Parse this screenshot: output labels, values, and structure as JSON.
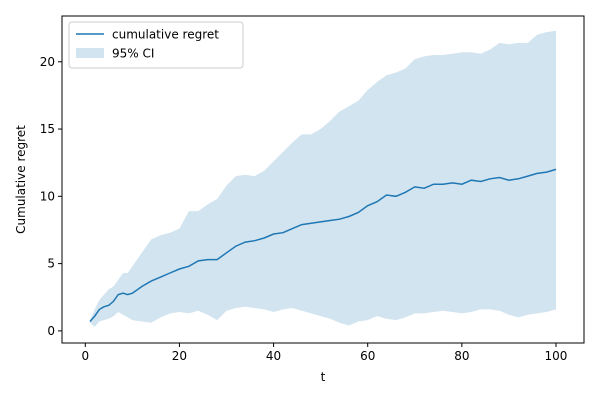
{
  "chart_data": {
    "type": "line",
    "title": "",
    "xlabel": "t",
    "ylabel": "Cumulative regret",
    "xlim": [
      -4.95,
      105.95
    ],
    "ylim": [
      -0.9,
      23.4
    ],
    "xticks": [
      0,
      20,
      40,
      60,
      80,
      100
    ],
    "yticks": [
      0,
      5,
      10,
      15,
      20
    ],
    "grid": false,
    "legend_position": "top-left",
    "series": [
      {
        "name": "cumulative regret",
        "color": "#1f77b4",
        "x": [
          1,
          2,
          3,
          4,
          5,
          6,
          7,
          8,
          9,
          10,
          12,
          14,
          16,
          18,
          20,
          22,
          24,
          26,
          28,
          30,
          32,
          34,
          36,
          38,
          40,
          42,
          44,
          46,
          48,
          50,
          52,
          54,
          56,
          58,
          60,
          62,
          64,
          66,
          68,
          70,
          72,
          74,
          76,
          78,
          80,
          82,
          84,
          86,
          88,
          90,
          92,
          94,
          96,
          98,
          100
        ],
        "y": [
          0.7,
          1.1,
          1.6,
          1.8,
          1.9,
          2.2,
          2.7,
          2.8,
          2.7,
          2.8,
          3.3,
          3.7,
          4.0,
          4.3,
          4.6,
          4.8,
          5.2,
          5.3,
          5.3,
          5.8,
          6.3,
          6.6,
          6.7,
          6.9,
          7.2,
          7.3,
          7.6,
          7.9,
          8.0,
          8.1,
          8.2,
          8.3,
          8.5,
          8.8,
          9.3,
          9.6,
          10.1,
          10.0,
          10.3,
          10.7,
          10.6,
          10.9,
          10.9,
          11.0,
          10.9,
          11.2,
          11.1,
          11.3,
          11.4,
          11.2,
          11.3,
          11.5,
          11.7,
          11.8,
          12.0
        ]
      },
      {
        "name": "95% CI",
        "type": "band",
        "color": "#1f77b4",
        "opacity": 0.2,
        "x": [
          1,
          2,
          3,
          4,
          5,
          6,
          7,
          8,
          9,
          10,
          12,
          14,
          16,
          18,
          20,
          22,
          24,
          26,
          28,
          30,
          32,
          34,
          36,
          38,
          40,
          42,
          44,
          46,
          48,
          50,
          52,
          54,
          56,
          58,
          60,
          62,
          64,
          66,
          68,
          70,
          72,
          74,
          76,
          78,
          80,
          82,
          84,
          86,
          88,
          90,
          92,
          94,
          96,
          98,
          100
        ],
        "upper": [
          0.8,
          1.6,
          2.3,
          2.7,
          3.1,
          3.3,
          3.8,
          4.3,
          4.3,
          4.8,
          5.8,
          6.8,
          7.1,
          7.3,
          7.6,
          8.9,
          8.9,
          9.4,
          9.8,
          10.8,
          11.5,
          11.6,
          11.5,
          11.9,
          12.6,
          13.3,
          14.0,
          14.6,
          14.6,
          15.0,
          15.6,
          16.3,
          16.7,
          17.1,
          17.9,
          18.5,
          19.0,
          19.2,
          19.5,
          20.2,
          20.4,
          20.5,
          20.5,
          20.6,
          20.7,
          20.7,
          20.6,
          20.9,
          21.4,
          21.3,
          21.4,
          21.4,
          22.0,
          22.2,
          22.3
        ],
        "lower": [
          0.6,
          0.3,
          0.7,
          0.8,
          0.9,
          1.1,
          1.4,
          1.2,
          1.0,
          0.8,
          0.7,
          0.6,
          1.0,
          1.3,
          1.4,
          1.3,
          1.5,
          1.2,
          0.8,
          1.5,
          1.7,
          1.8,
          1.7,
          1.6,
          1.4,
          1.6,
          1.7,
          1.5,
          1.3,
          1.1,
          0.9,
          0.6,
          0.4,
          0.7,
          0.8,
          1.1,
          0.9,
          0.8,
          1.0,
          1.3,
          1.3,
          1.4,
          1.5,
          1.4,
          1.3,
          1.4,
          1.6,
          1.6,
          1.5,
          1.2,
          1.0,
          1.2,
          1.3,
          1.4,
          1.6
        ]
      }
    ]
  }
}
